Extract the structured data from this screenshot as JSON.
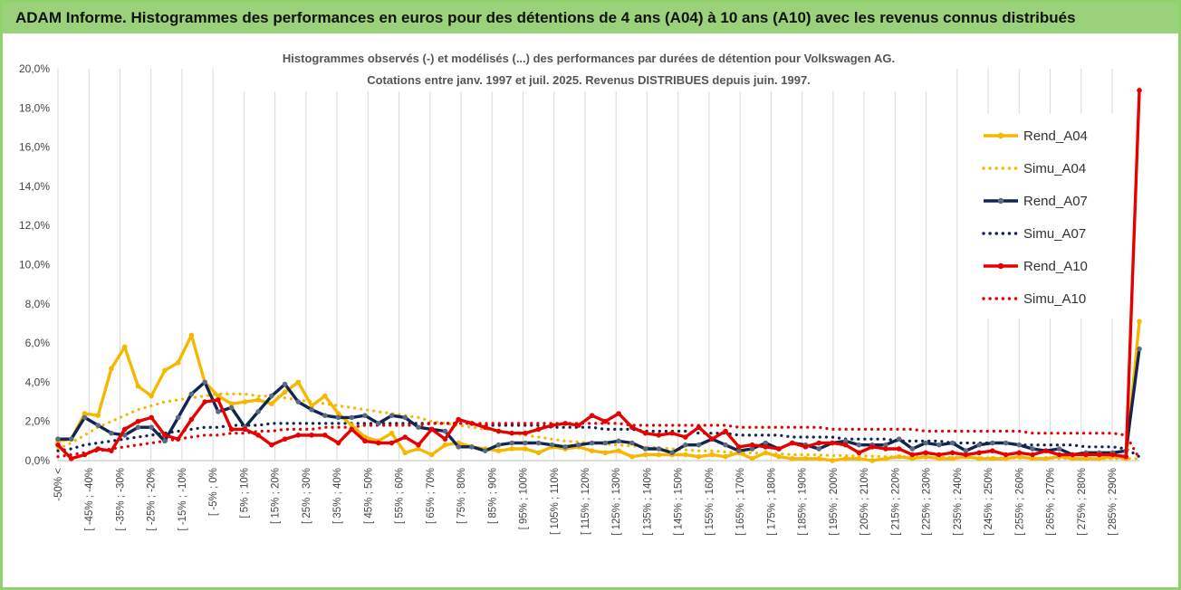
{
  "banner": "ADAM Informe. Histogrammes des performances en euros pour des détentions de 4 ans (A04) à 10 ans (A10) avec les revenus connus distribués",
  "chart_data": {
    "type": "line",
    "title_line1": "Histogrammes observés (-) et modélisés (...) des performances par durées de détention pour Volkswagen AG.",
    "title_line2": "Cotations entre janv. 1997 et juil. 2025. Revenus DISTRIBUES depuis juin. 1997.",
    "y_ticks": [
      "0,0%",
      "2,0%",
      "4,0%",
      "6,0%",
      "8,0%",
      "10,0%",
      "12,0%",
      "14,0%",
      "16,0%",
      "18,0%",
      "20,0%"
    ],
    "ylim": [
      0,
      20
    ],
    "x_tick_labels": [
      "-50% <",
      "[ -45% ; -40%",
      "[ -35% ; -30%",
      "[ -25% ; -20%",
      "[ -15% ; -10%",
      "[ -5% ; 0%",
      "[ 5% ; 10%",
      "[ 15% ; 20%",
      "[ 25% ; 30%",
      "[ 35% ; 40%",
      "[ 45% ; 50%",
      "[ 55% ; 60%",
      "[ 65% ; 70%",
      "[ 75% ; 80%",
      "[ 85% ; 90%",
      "[ 95% ; 100%",
      "[ 105% ; 110%",
      "[ 115% ; 120%",
      "[ 125% ; 130%",
      "[ 135% ; 140%",
      "[ 145% ; 150%",
      "[ 155% ; 160%",
      "[ 165% ; 170%",
      "[ 175% ; 180%",
      "[ 185% ; 190%",
      "[ 195% ; 200%",
      "[ 205% ; 210%",
      "[ 215% ; 220%",
      "[ 225% ; 230%",
      "[ 235% ; 240%",
      "[ 245% ; 250%",
      "[ 255% ; 260%",
      "[ 265% ; 270%",
      "[ 275% ; 280%",
      "[ 285% ; 290%"
    ],
    "legend_position": "top-right",
    "grid": "vertical",
    "series": [
      {
        "name": "Rend_A04",
        "style": "solid",
        "color": "#f5b800",
        "values": [
          1.0,
          1.1,
          2.4,
          2.3,
          4.7,
          5.8,
          3.8,
          3.3,
          4.6,
          5.0,
          6.4,
          4.0,
          3.3,
          2.9,
          3.0,
          3.1,
          2.9,
          3.5,
          4.0,
          2.8,
          3.3,
          2.4,
          1.8,
          1.2,
          1.0,
          1.4,
          0.4,
          0.6,
          0.3,
          0.8,
          0.9,
          0.7,
          0.6,
          0.5,
          0.6,
          0.6,
          0.4,
          0.7,
          0.6,
          0.7,
          0.5,
          0.4,
          0.5,
          0.2,
          0.3,
          0.3,
          0.3,
          0.3,
          0.2,
          0.3,
          0.2,
          0.4,
          0.1,
          0.4,
          0.2,
          0.1,
          0.1,
          0.1,
          0.0,
          0.1,
          0.1,
          0.0,
          0.1,
          0.2,
          0.1,
          0.2,
          0.1,
          0.1,
          0.2,
          0.1,
          0.1,
          0.1,
          0.2,
          0.1,
          0.1,
          0.2,
          0.1,
          0.1,
          0.1,
          0.2,
          0.1,
          7.1
        ]
      },
      {
        "name": "Simu_A04",
        "style": "dotted",
        "color": "#f5b800",
        "values": [
          0.6,
          0.9,
          1.3,
          1.7,
          2.0,
          2.3,
          2.6,
          2.8,
          3.0,
          3.1,
          3.2,
          3.3,
          3.4,
          3.4,
          3.4,
          3.3,
          3.3,
          3.2,
          3.1,
          3.0,
          2.9,
          2.8,
          2.7,
          2.6,
          2.5,
          2.4,
          2.3,
          2.2,
          2.0,
          1.9,
          1.8,
          1.7,
          1.6,
          1.5,
          1.4,
          1.3,
          1.2,
          1.1,
          1.0,
          0.95,
          0.9,
          0.85,
          0.8,
          0.75,
          0.7,
          0.65,
          0.6,
          0.55,
          0.5,
          0.5,
          0.45,
          0.4,
          0.4,
          0.35,
          0.35,
          0.3,
          0.3,
          0.28,
          0.26,
          0.25,
          0.24,
          0.22,
          0.2,
          0.2,
          0.19,
          0.18,
          0.17,
          0.16,
          0.15,
          0.15,
          0.14,
          0.13,
          0.13,
          0.12,
          0.12,
          0.11,
          0.11,
          0.1,
          0.1,
          0.1,
          0.1,
          0.1
        ]
      },
      {
        "name": "Rend_A07",
        "style": "solid",
        "color": "#10254f",
        "values": [
          1.1,
          1.1,
          2.2,
          1.8,
          1.4,
          1.3,
          1.7,
          1.7,
          1.0,
          2.2,
          3.4,
          4.0,
          2.5,
          2.7,
          1.7,
          2.5,
          3.3,
          3.9,
          3.0,
          2.6,
          2.3,
          2.2,
          2.2,
          2.3,
          1.9,
          2.3,
          2.2,
          1.7,
          1.6,
          1.5,
          0.7,
          0.7,
          0.5,
          0.8,
          0.9,
          0.9,
          0.9,
          0.8,
          0.7,
          0.8,
          0.9,
          0.9,
          1.0,
          0.9,
          0.6,
          0.6,
          0.4,
          0.8,
          0.8,
          1.1,
          0.8,
          0.5,
          0.6,
          0.9,
          0.6,
          0.9,
          0.8,
          0.6,
          0.9,
          1.0,
          0.8,
          0.8,
          0.8,
          1.1,
          0.6,
          0.9,
          0.8,
          0.9,
          0.5,
          0.8,
          0.9,
          0.9,
          0.8,
          0.6,
          0.5,
          0.6,
          0.3,
          0.4,
          0.4,
          0.4,
          0.5,
          5.7
        ]
      },
      {
        "name": "Simu_A07",
        "style": "dotted",
        "color": "#10254f",
        "values": [
          0.5,
          0.6,
          0.8,
          0.9,
          1.0,
          1.1,
          1.2,
          1.3,
          1.4,
          1.5,
          1.6,
          1.7,
          1.7,
          1.8,
          1.8,
          1.8,
          1.9,
          1.9,
          1.9,
          1.9,
          1.9,
          1.9,
          1.9,
          1.9,
          1.9,
          1.9,
          1.9,
          1.9,
          1.9,
          1.9,
          1.9,
          1.9,
          1.8,
          1.8,
          1.8,
          1.8,
          1.8,
          1.7,
          1.7,
          1.7,
          1.7,
          1.6,
          1.6,
          1.6,
          1.5,
          1.5,
          1.5,
          1.5,
          1.4,
          1.4,
          1.4,
          1.3,
          1.3,
          1.3,
          1.3,
          1.2,
          1.2,
          1.2,
          1.2,
          1.1,
          1.1,
          1.1,
          1.1,
          1.0,
          1.0,
          1.0,
          1.0,
          0.9,
          0.9,
          0.9,
          0.9,
          0.9,
          0.8,
          0.8,
          0.8,
          0.8,
          0.8,
          0.7,
          0.7,
          0.7,
          0.6,
          0.2
        ]
      },
      {
        "name": "Rend_A10",
        "style": "solid",
        "color": "#e60000",
        "values": [
          0.8,
          0.1,
          0.3,
          0.6,
          0.5,
          1.6,
          2.0,
          2.2,
          1.3,
          1.1,
          2.1,
          3.0,
          3.1,
          1.6,
          1.6,
          1.3,
          0.8,
          1.1,
          1.3,
          1.3,
          1.3,
          0.9,
          1.6,
          1.0,
          0.9,
          0.9,
          1.2,
          0.8,
          1.6,
          1.1,
          2.1,
          1.9,
          1.7,
          1.5,
          1.4,
          1.4,
          1.6,
          1.8,
          1.9,
          1.8,
          2.3,
          2.0,
          2.4,
          1.7,
          1.4,
          1.3,
          1.4,
          1.2,
          1.7,
          1.1,
          1.5,
          0.7,
          0.8,
          0.7,
          0.6,
          0.9,
          0.7,
          0.9,
          0.9,
          0.8,
          0.4,
          0.7,
          0.6,
          0.6,
          0.3,
          0.4,
          0.3,
          0.4,
          0.3,
          0.4,
          0.5,
          0.3,
          0.4,
          0.3,
          0.5,
          0.3,
          0.3,
          0.3,
          0.3,
          0.3,
          0.2,
          18.9
        ]
      },
      {
        "name": "Simu_A10",
        "style": "dotted",
        "color": "#e60000",
        "values": [
          0.2,
          0.3,
          0.4,
          0.5,
          0.6,
          0.7,
          0.8,
          0.9,
          1.0,
          1.1,
          1.2,
          1.3,
          1.3,
          1.4,
          1.4,
          1.5,
          1.5,
          1.6,
          1.6,
          1.6,
          1.7,
          1.7,
          1.7,
          1.8,
          1.8,
          1.8,
          1.8,
          1.8,
          1.9,
          1.9,
          1.9,
          1.9,
          1.9,
          1.9,
          1.9,
          1.9,
          1.9,
          1.9,
          1.9,
          1.9,
          1.9,
          1.9,
          1.9,
          1.8,
          1.8,
          1.8,
          1.8,
          1.8,
          1.8,
          1.8,
          1.8,
          1.7,
          1.7,
          1.7,
          1.7,
          1.7,
          1.7,
          1.7,
          1.6,
          1.6,
          1.6,
          1.6,
          1.6,
          1.6,
          1.6,
          1.5,
          1.5,
          1.5,
          1.5,
          1.5,
          1.5,
          1.5,
          1.5,
          1.4,
          1.4,
          1.4,
          1.4,
          1.4,
          1.4,
          1.4,
          1.3,
          0.1
        ]
      }
    ]
  }
}
